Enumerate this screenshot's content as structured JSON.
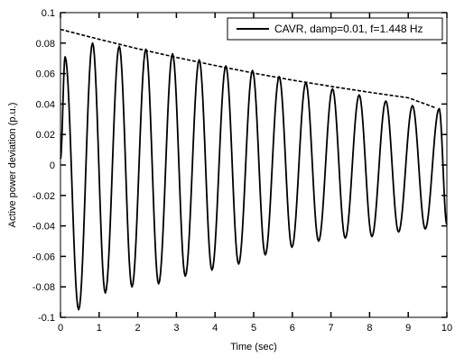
{
  "chart_data": {
    "type": "line",
    "xlabel": "Time (sec)",
    "ylabel": "Active power deviation (p.u.)",
    "xlim": [
      0,
      10
    ],
    "ylim": [
      -0.1,
      0.1
    ],
    "x_ticks": [
      "0",
      "1",
      "2",
      "3",
      "4",
      "5",
      "6",
      "7",
      "8",
      "9",
      "10"
    ],
    "y_ticks": [
      "0.1",
      "0.08",
      "0.06",
      "0.04",
      "0.02",
      "0",
      "-0.02",
      "-0.04",
      "-0.06",
      "-0.08",
      "-0.1"
    ],
    "grid": false,
    "legend_position": "top-right",
    "frequency_hz": 1.448,
    "series": [
      {
        "name": "CAVR, damp=0.01, f=1.448 Hz",
        "style": "solid",
        "color": "#000000",
        "peaks": [
          {
            "x": 0.12,
            "y": 0.071
          },
          {
            "x": 0.83,
            "y": 0.08
          },
          {
            "x": 1.52,
            "y": 0.078
          },
          {
            "x": 2.21,
            "y": 0.076
          },
          {
            "x": 2.9,
            "y": 0.073
          },
          {
            "x": 3.59,
            "y": 0.069
          },
          {
            "x": 4.28,
            "y": 0.065
          },
          {
            "x": 4.97,
            "y": 0.062
          },
          {
            "x": 5.66,
            "y": 0.058
          },
          {
            "x": 6.35,
            "y": 0.054
          },
          {
            "x": 7.04,
            "y": 0.05
          },
          {
            "x": 7.73,
            "y": 0.046
          },
          {
            "x": 8.42,
            "y": 0.042
          },
          {
            "x": 9.11,
            "y": 0.039
          },
          {
            "x": 9.8,
            "y": 0.037
          }
        ],
        "troughs": [
          {
            "x": 0.47,
            "y": -0.095
          },
          {
            "x": 1.16,
            "y": -0.084
          },
          {
            "x": 1.85,
            "y": -0.08
          },
          {
            "x": 2.54,
            "y": -0.078
          },
          {
            "x": 3.23,
            "y": -0.073
          },
          {
            "x": 3.92,
            "y": -0.069
          },
          {
            "x": 4.61,
            "y": -0.065
          },
          {
            "x": 5.3,
            "y": -0.059
          },
          {
            "x": 5.99,
            "y": -0.054
          },
          {
            "x": 6.68,
            "y": -0.05
          },
          {
            "x": 7.37,
            "y": -0.048
          },
          {
            "x": 8.06,
            "y": -0.047
          },
          {
            "x": 8.75,
            "y": -0.044
          },
          {
            "x": 9.44,
            "y": -0.042
          }
        ],
        "start": {
          "x": 0.0,
          "y": 0.004
        },
        "end": {
          "x": 10.0,
          "y": -0.039
        }
      },
      {
        "style": "dashed",
        "color": "#000000",
        "x": [
          0,
          1,
          2,
          3,
          4,
          5,
          6,
          7,
          8,
          9,
          9.7
        ],
        "values": [
          0.089,
          0.0825,
          0.0763,
          0.0706,
          0.0653,
          0.0603,
          0.0557,
          0.0516,
          0.0477,
          0.0441,
          0.0376
        ]
      }
    ]
  }
}
